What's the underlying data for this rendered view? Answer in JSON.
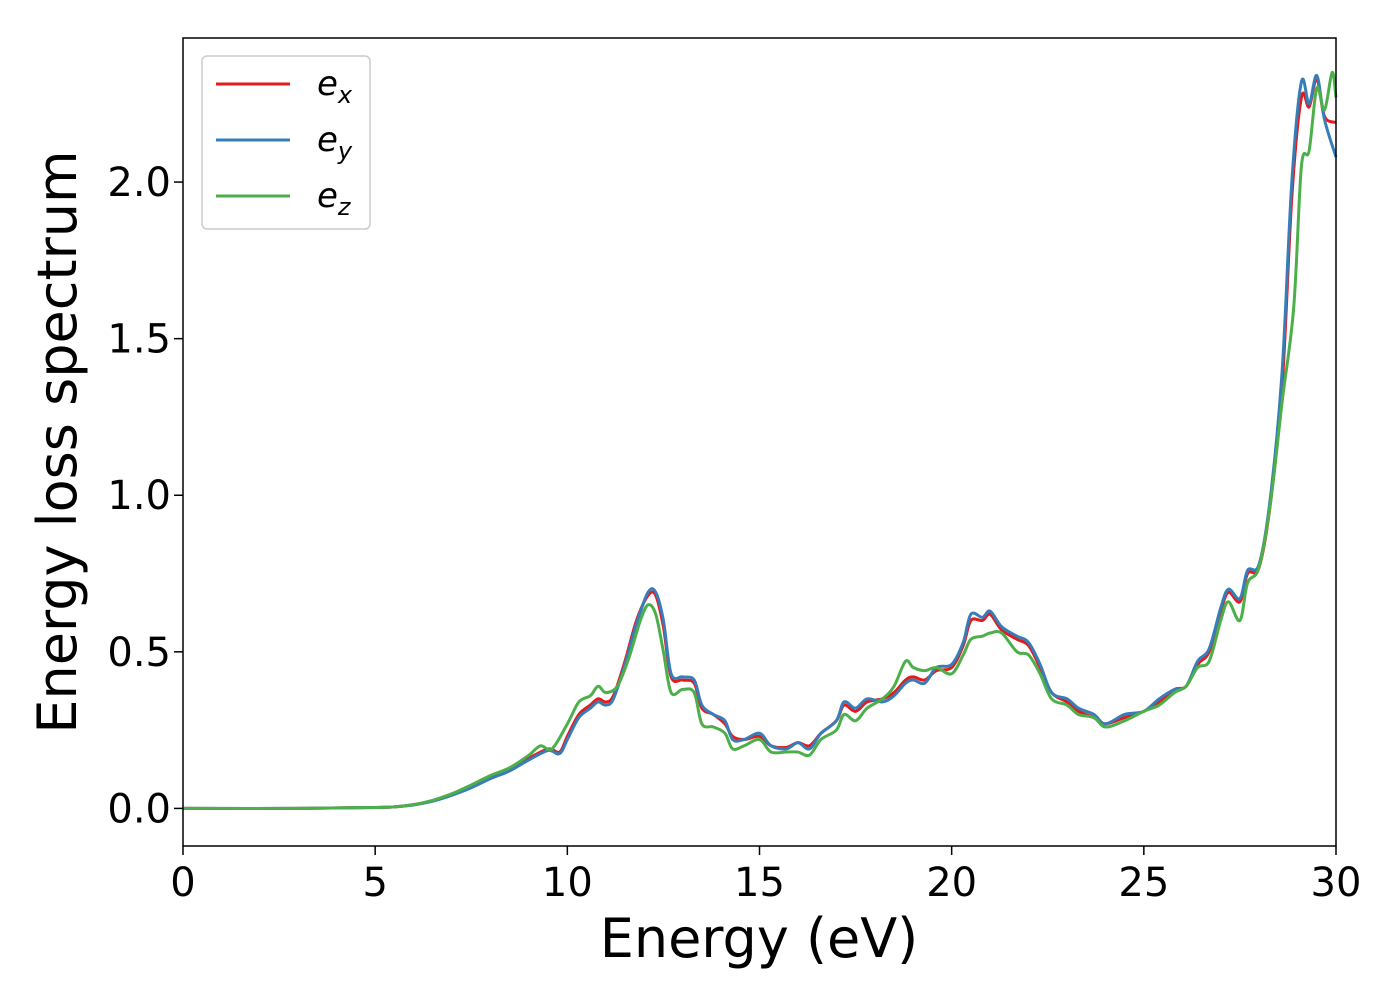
{
  "chart_data": {
    "type": "line",
    "title": "",
    "xlabel": "Energy (eV)",
    "ylabel": "Energy loss spectrum",
    "xlim": [
      0,
      30
    ],
    "ylim": [
      -0.12,
      2.46
    ],
    "xticks": [
      0,
      5,
      10,
      15,
      20,
      25,
      30
    ],
    "xtick_labels": [
      "0",
      "5",
      "10",
      "15",
      "20",
      "25",
      "30"
    ],
    "yticks": [
      0.0,
      0.5,
      1.0,
      1.5,
      2.0
    ],
    "ytick_labels": [
      "0.0",
      "0.5",
      "1.0",
      "1.5",
      "2.0"
    ],
    "grid": false,
    "legend_position": "top-left",
    "series": [
      {
        "name": "e_x",
        "legend_base": "e",
        "legend_sub": "x",
        "color": "#e41a1c",
        "points": [
          [
            0,
            0.0
          ],
          [
            3,
            0.0
          ],
          [
            5,
            0.003
          ],
          [
            5.5,
            0.005
          ],
          [
            6,
            0.012
          ],
          [
            6.5,
            0.025
          ],
          [
            7,
            0.045
          ],
          [
            7.5,
            0.07
          ],
          [
            8,
            0.1
          ],
          [
            8.5,
            0.125
          ],
          [
            9,
            0.16
          ],
          [
            9.5,
            0.19
          ],
          [
            9.8,
            0.18
          ],
          [
            10,
            0.23
          ],
          [
            10.3,
            0.3
          ],
          [
            10.6,
            0.33
          ],
          [
            10.8,
            0.35
          ],
          [
            11,
            0.34
          ],
          [
            11.2,
            0.36
          ],
          [
            11.5,
            0.47
          ],
          [
            11.8,
            0.6
          ],
          [
            12.1,
            0.68
          ],
          [
            12.3,
            0.68
          ],
          [
            12.5,
            0.58
          ],
          [
            12.7,
            0.42
          ],
          [
            13,
            0.41
          ],
          [
            13.3,
            0.4
          ],
          [
            13.5,
            0.32
          ],
          [
            13.8,
            0.3
          ],
          [
            14.1,
            0.27
          ],
          [
            14.3,
            0.23
          ],
          [
            14.6,
            0.22
          ],
          [
            15,
            0.23
          ],
          [
            15.3,
            0.2
          ],
          [
            15.7,
            0.195
          ],
          [
            16,
            0.21
          ],
          [
            16.3,
            0.2
          ],
          [
            16.6,
            0.24
          ],
          [
            17,
            0.28
          ],
          [
            17.2,
            0.33
          ],
          [
            17.5,
            0.31
          ],
          [
            17.8,
            0.34
          ],
          [
            18.2,
            0.35
          ],
          [
            18.5,
            0.37
          ],
          [
            18.8,
            0.41
          ],
          [
            19,
            0.42
          ],
          [
            19.3,
            0.41
          ],
          [
            19.6,
            0.44
          ],
          [
            20,
            0.45
          ],
          [
            20.3,
            0.52
          ],
          [
            20.5,
            0.6
          ],
          [
            20.8,
            0.6
          ],
          [
            21,
            0.62
          ],
          [
            21.3,
            0.57
          ],
          [
            21.7,
            0.54
          ],
          [
            22,
            0.52
          ],
          [
            22.3,
            0.45
          ],
          [
            22.6,
            0.37
          ],
          [
            23,
            0.34
          ],
          [
            23.3,
            0.31
          ],
          [
            23.7,
            0.29
          ],
          [
            24,
            0.27
          ],
          [
            24.5,
            0.29
          ],
          [
            25,
            0.31
          ],
          [
            25.4,
            0.34
          ],
          [
            25.8,
            0.38
          ],
          [
            26.1,
            0.39
          ],
          [
            26.4,
            0.46
          ],
          [
            26.7,
            0.5
          ],
          [
            27,
            0.63
          ],
          [
            27.2,
            0.69
          ],
          [
            27.5,
            0.66
          ],
          [
            27.7,
            0.75
          ],
          [
            28,
            0.77
          ],
          [
            28.3,
            0.98
          ],
          [
            28.6,
            1.35
          ],
          [
            28.85,
            1.95
          ],
          [
            29.1,
            2.27
          ],
          [
            29.3,
            2.24
          ],
          [
            29.5,
            2.33
          ],
          [
            29.7,
            2.21
          ],
          [
            30,
            2.19
          ]
        ]
      },
      {
        "name": "e_y",
        "legend_base": "e",
        "legend_sub": "y",
        "color": "#377eb8",
        "points": [
          [
            0,
            0.0
          ],
          [
            3,
            0.0
          ],
          [
            5,
            0.003
          ],
          [
            5.5,
            0.005
          ],
          [
            6,
            0.011
          ],
          [
            6.5,
            0.023
          ],
          [
            7,
            0.042
          ],
          [
            7.5,
            0.066
          ],
          [
            8,
            0.095
          ],
          [
            8.5,
            0.12
          ],
          [
            9,
            0.155
          ],
          [
            9.5,
            0.185
          ],
          [
            9.8,
            0.175
          ],
          [
            10,
            0.22
          ],
          [
            10.3,
            0.29
          ],
          [
            10.6,
            0.32
          ],
          [
            10.8,
            0.34
          ],
          [
            11,
            0.33
          ],
          [
            11.2,
            0.35
          ],
          [
            11.5,
            0.46
          ],
          [
            11.8,
            0.59
          ],
          [
            12.1,
            0.69
          ],
          [
            12.3,
            0.69
          ],
          [
            12.5,
            0.6
          ],
          [
            12.7,
            0.43
          ],
          [
            13,
            0.42
          ],
          [
            13.3,
            0.41
          ],
          [
            13.5,
            0.33
          ],
          [
            13.8,
            0.3
          ],
          [
            14.1,
            0.28
          ],
          [
            14.3,
            0.22
          ],
          [
            14.6,
            0.22
          ],
          [
            15,
            0.24
          ],
          [
            15.3,
            0.2
          ],
          [
            15.7,
            0.19
          ],
          [
            16,
            0.21
          ],
          [
            16.3,
            0.19
          ],
          [
            16.6,
            0.24
          ],
          [
            17,
            0.28
          ],
          [
            17.2,
            0.34
          ],
          [
            17.5,
            0.32
          ],
          [
            17.8,
            0.35
          ],
          [
            18.2,
            0.34
          ],
          [
            18.5,
            0.36
          ],
          [
            18.8,
            0.4
          ],
          [
            19,
            0.41
          ],
          [
            19.3,
            0.4
          ],
          [
            19.6,
            0.45
          ],
          [
            20,
            0.46
          ],
          [
            20.3,
            0.53
          ],
          [
            20.5,
            0.62
          ],
          [
            20.8,
            0.61
          ],
          [
            21,
            0.63
          ],
          [
            21.3,
            0.58
          ],
          [
            21.7,
            0.55
          ],
          [
            22,
            0.53
          ],
          [
            22.3,
            0.46
          ],
          [
            22.6,
            0.37
          ],
          [
            23,
            0.35
          ],
          [
            23.3,
            0.32
          ],
          [
            23.7,
            0.3
          ],
          [
            24,
            0.27
          ],
          [
            24.5,
            0.3
          ],
          [
            25,
            0.31
          ],
          [
            25.4,
            0.35
          ],
          [
            25.8,
            0.38
          ],
          [
            26.1,
            0.39
          ],
          [
            26.4,
            0.47
          ],
          [
            26.7,
            0.51
          ],
          [
            27,
            0.64
          ],
          [
            27.2,
            0.7
          ],
          [
            27.5,
            0.67
          ],
          [
            27.7,
            0.76
          ],
          [
            28,
            0.78
          ],
          [
            28.3,
            1.0
          ],
          [
            28.6,
            1.4
          ],
          [
            28.85,
            2.0
          ],
          [
            29.1,
            2.32
          ],
          [
            29.3,
            2.25
          ],
          [
            29.5,
            2.34
          ],
          [
            29.7,
            2.2
          ],
          [
            30,
            2.08
          ]
        ]
      },
      {
        "name": "e_z",
        "legend_base": "e",
        "legend_sub": "z",
        "color": "#4daf4a",
        "points": [
          [
            0,
            0.0
          ],
          [
            3,
            0.0
          ],
          [
            5,
            0.003
          ],
          [
            5.5,
            0.005
          ],
          [
            6,
            0.012
          ],
          [
            6.5,
            0.026
          ],
          [
            7,
            0.047
          ],
          [
            7.5,
            0.075
          ],
          [
            8,
            0.105
          ],
          [
            8.5,
            0.13
          ],
          [
            9,
            0.17
          ],
          [
            9.3,
            0.2
          ],
          [
            9.6,
            0.19
          ],
          [
            10,
            0.27
          ],
          [
            10.3,
            0.34
          ],
          [
            10.6,
            0.36
          ],
          [
            10.8,
            0.39
          ],
          [
            11,
            0.37
          ],
          [
            11.3,
            0.39
          ],
          [
            11.6,
            0.48
          ],
          [
            11.9,
            0.6
          ],
          [
            12.1,
            0.65
          ],
          [
            12.3,
            0.62
          ],
          [
            12.5,
            0.5
          ],
          [
            12.7,
            0.37
          ],
          [
            13,
            0.38
          ],
          [
            13.3,
            0.37
          ],
          [
            13.5,
            0.27
          ],
          [
            13.8,
            0.26
          ],
          [
            14.1,
            0.24
          ],
          [
            14.3,
            0.19
          ],
          [
            14.6,
            0.2
          ],
          [
            15,
            0.22
          ],
          [
            15.3,
            0.18
          ],
          [
            15.7,
            0.18
          ],
          [
            16,
            0.18
          ],
          [
            16.3,
            0.17
          ],
          [
            16.6,
            0.22
          ],
          [
            17,
            0.25
          ],
          [
            17.2,
            0.3
          ],
          [
            17.5,
            0.28
          ],
          [
            17.8,
            0.32
          ],
          [
            18.2,
            0.35
          ],
          [
            18.5,
            0.39
          ],
          [
            18.8,
            0.47
          ],
          [
            19,
            0.45
          ],
          [
            19.3,
            0.44
          ],
          [
            19.6,
            0.45
          ],
          [
            20,
            0.43
          ],
          [
            20.3,
            0.49
          ],
          [
            20.5,
            0.54
          ],
          [
            20.8,
            0.55
          ],
          [
            21,
            0.56
          ],
          [
            21.3,
            0.56
          ],
          [
            21.7,
            0.5
          ],
          [
            22,
            0.49
          ],
          [
            22.3,
            0.43
          ],
          [
            22.6,
            0.35
          ],
          [
            23,
            0.33
          ],
          [
            23.3,
            0.3
          ],
          [
            23.7,
            0.29
          ],
          [
            24,
            0.26
          ],
          [
            24.5,
            0.28
          ],
          [
            25,
            0.31
          ],
          [
            25.4,
            0.33
          ],
          [
            25.8,
            0.37
          ],
          [
            26.1,
            0.39
          ],
          [
            26.4,
            0.45
          ],
          [
            26.7,
            0.47
          ],
          [
            27,
            0.6
          ],
          [
            27.2,
            0.66
          ],
          [
            27.5,
            0.6
          ],
          [
            27.7,
            0.72
          ],
          [
            28,
            0.77
          ],
          [
            28.3,
            0.98
          ],
          [
            28.6,
            1.3
          ],
          [
            28.9,
            1.6
          ],
          [
            29.1,
            2.05
          ],
          [
            29.3,
            2.1
          ],
          [
            29.5,
            2.3
          ],
          [
            29.7,
            2.23
          ],
          [
            29.9,
            2.35
          ],
          [
            30,
            2.27
          ]
        ]
      }
    ]
  }
}
